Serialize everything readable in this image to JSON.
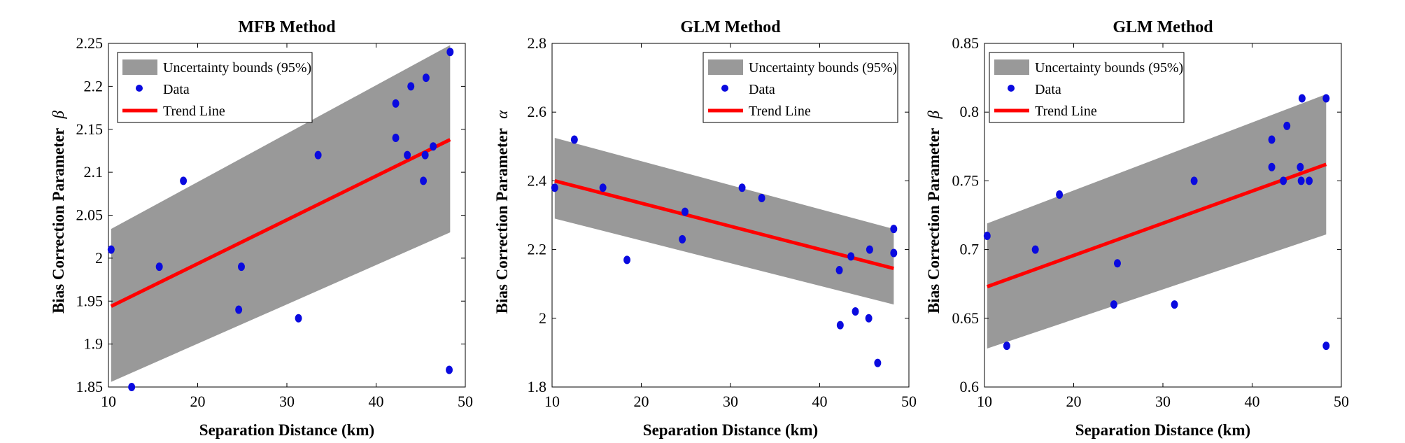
{
  "colors": {
    "band": "#999999",
    "data": "#0a0adf",
    "trend": "#ff0000",
    "axis": "#000000"
  },
  "chart_data": [
    {
      "type": "scatter",
      "title": "MFB Method",
      "xlabel": "Separation Distance (km)",
      "ylabel": "Bias Correction Parameter",
      "ylabel_symbol": "β",
      "xlim": [
        10,
        50
      ],
      "ylim": [
        1.85,
        2.25
      ],
      "xticks": [
        "10",
        "20",
        "30",
        "40",
        "50"
      ],
      "yticks": [
        "1.85",
        "1.9",
        "1.95",
        "2",
        "2.05",
        "2.1",
        "2.15",
        "2.2",
        "2.25"
      ],
      "legend": {
        "position": "top-left",
        "entries": [
          "Uncertainty bounds (95%)",
          "Data",
          "Trend Line"
        ]
      },
      "series": [
        {
          "name": "Data",
          "x": [
            10.3,
            12.6,
            15.7,
            18.4,
            24.6,
            24.9,
            31.3,
            33.5,
            42.2,
            42.2,
            43.5,
            43.9,
            45.3,
            45.5,
            45.6,
            46.4,
            48.3,
            48.2
          ],
          "y": [
            2.01,
            1.85,
            1.99,
            2.09,
            1.94,
            1.99,
            1.93,
            2.12,
            2.18,
            2.14,
            2.12,
            2.2,
            2.09,
            2.12,
            2.21,
            2.13,
            2.24,
            1.87
          ]
        },
        {
          "name": "Trend Line",
          "x": [
            10.3,
            48.3
          ],
          "y": [
            1.944,
            2.138
          ]
        },
        {
          "name": "Uncertainty bounds (95%)",
          "x": [
            10.3,
            48.3
          ],
          "lower": [
            1.856,
            2.03
          ],
          "upper": [
            2.034,
            2.248
          ]
        }
      ]
    },
    {
      "type": "scatter",
      "title": "GLM Method",
      "xlabel": "Separation Distance (km)",
      "ylabel": "Bias Correction Parameter",
      "ylabel_symbol": "α",
      "xlim": [
        10,
        50
      ],
      "ylim": [
        1.8,
        2.8
      ],
      "xticks": [
        "10",
        "20",
        "30",
        "40",
        "50"
      ],
      "yticks": [
        "1.8",
        "2",
        "2.2",
        "2.4",
        "2.6",
        "2.8"
      ],
      "legend": {
        "position": "top-right",
        "entries": [
          "Uncertainty bounds (95%)",
          "Data",
          "Trend Line"
        ]
      },
      "series": [
        {
          "name": "Data",
          "x": [
            10.3,
            12.5,
            15.7,
            18.4,
            24.6,
            24.9,
            31.3,
            33.5,
            42.2,
            42.3,
            43.5,
            44.0,
            45.5,
            45.6,
            46.5,
            48.3,
            48.3
          ],
          "y": [
            2.38,
            2.52,
            2.38,
            2.17,
            2.23,
            2.31,
            2.38,
            2.35,
            2.14,
            1.98,
            2.18,
            2.02,
            2.0,
            2.2,
            1.87,
            2.26,
            2.19
          ]
        },
        {
          "name": "Trend Line",
          "x": [
            10.3,
            48.3
          ],
          "y": [
            2.4,
            2.145
          ]
        },
        {
          "name": "Uncertainty bounds (95%)",
          "x": [
            10.3,
            48.3
          ],
          "lower": [
            2.29,
            2.04
          ],
          "upper": [
            2.525,
            2.26
          ]
        }
      ]
    },
    {
      "type": "scatter",
      "title": "GLM Method",
      "xlabel": "Separation Distance (km)",
      "ylabel": "Bias Correction Parameter",
      "ylabel_symbol": "β",
      "xlim": [
        10,
        50
      ],
      "ylim": [
        0.6,
        0.85
      ],
      "xticks": [
        "10",
        "20",
        "30",
        "40",
        "50"
      ],
      "yticks": [
        "0.6",
        "0.65",
        "0.7",
        "0.75",
        "0.8",
        "0.85"
      ],
      "legend": {
        "position": "top-left",
        "entries": [
          "Uncertainty bounds (95%)",
          "Data",
          "Trend Line"
        ]
      },
      "series": [
        {
          "name": "Data",
          "x": [
            10.3,
            12.5,
            15.7,
            18.4,
            24.5,
            24.9,
            31.3,
            33.5,
            42.2,
            42.2,
            43.5,
            43.9,
            45.4,
            45.5,
            45.6,
            46.4,
            48.3,
            48.3
          ],
          "y": [
            0.71,
            0.63,
            0.7,
            0.74,
            0.66,
            0.69,
            0.66,
            0.75,
            0.78,
            0.76,
            0.75,
            0.79,
            0.76,
            0.75,
            0.81,
            0.75,
            0.81,
            0.63
          ]
        },
        {
          "name": "Trend Line",
          "x": [
            10.3,
            48.3
          ],
          "y": [
            0.673,
            0.762
          ]
        },
        {
          "name": "Uncertainty bounds (95%)",
          "x": [
            10.3,
            48.3
          ],
          "lower": [
            0.628,
            0.711
          ],
          "upper": [
            0.719,
            0.813
          ]
        }
      ]
    }
  ]
}
